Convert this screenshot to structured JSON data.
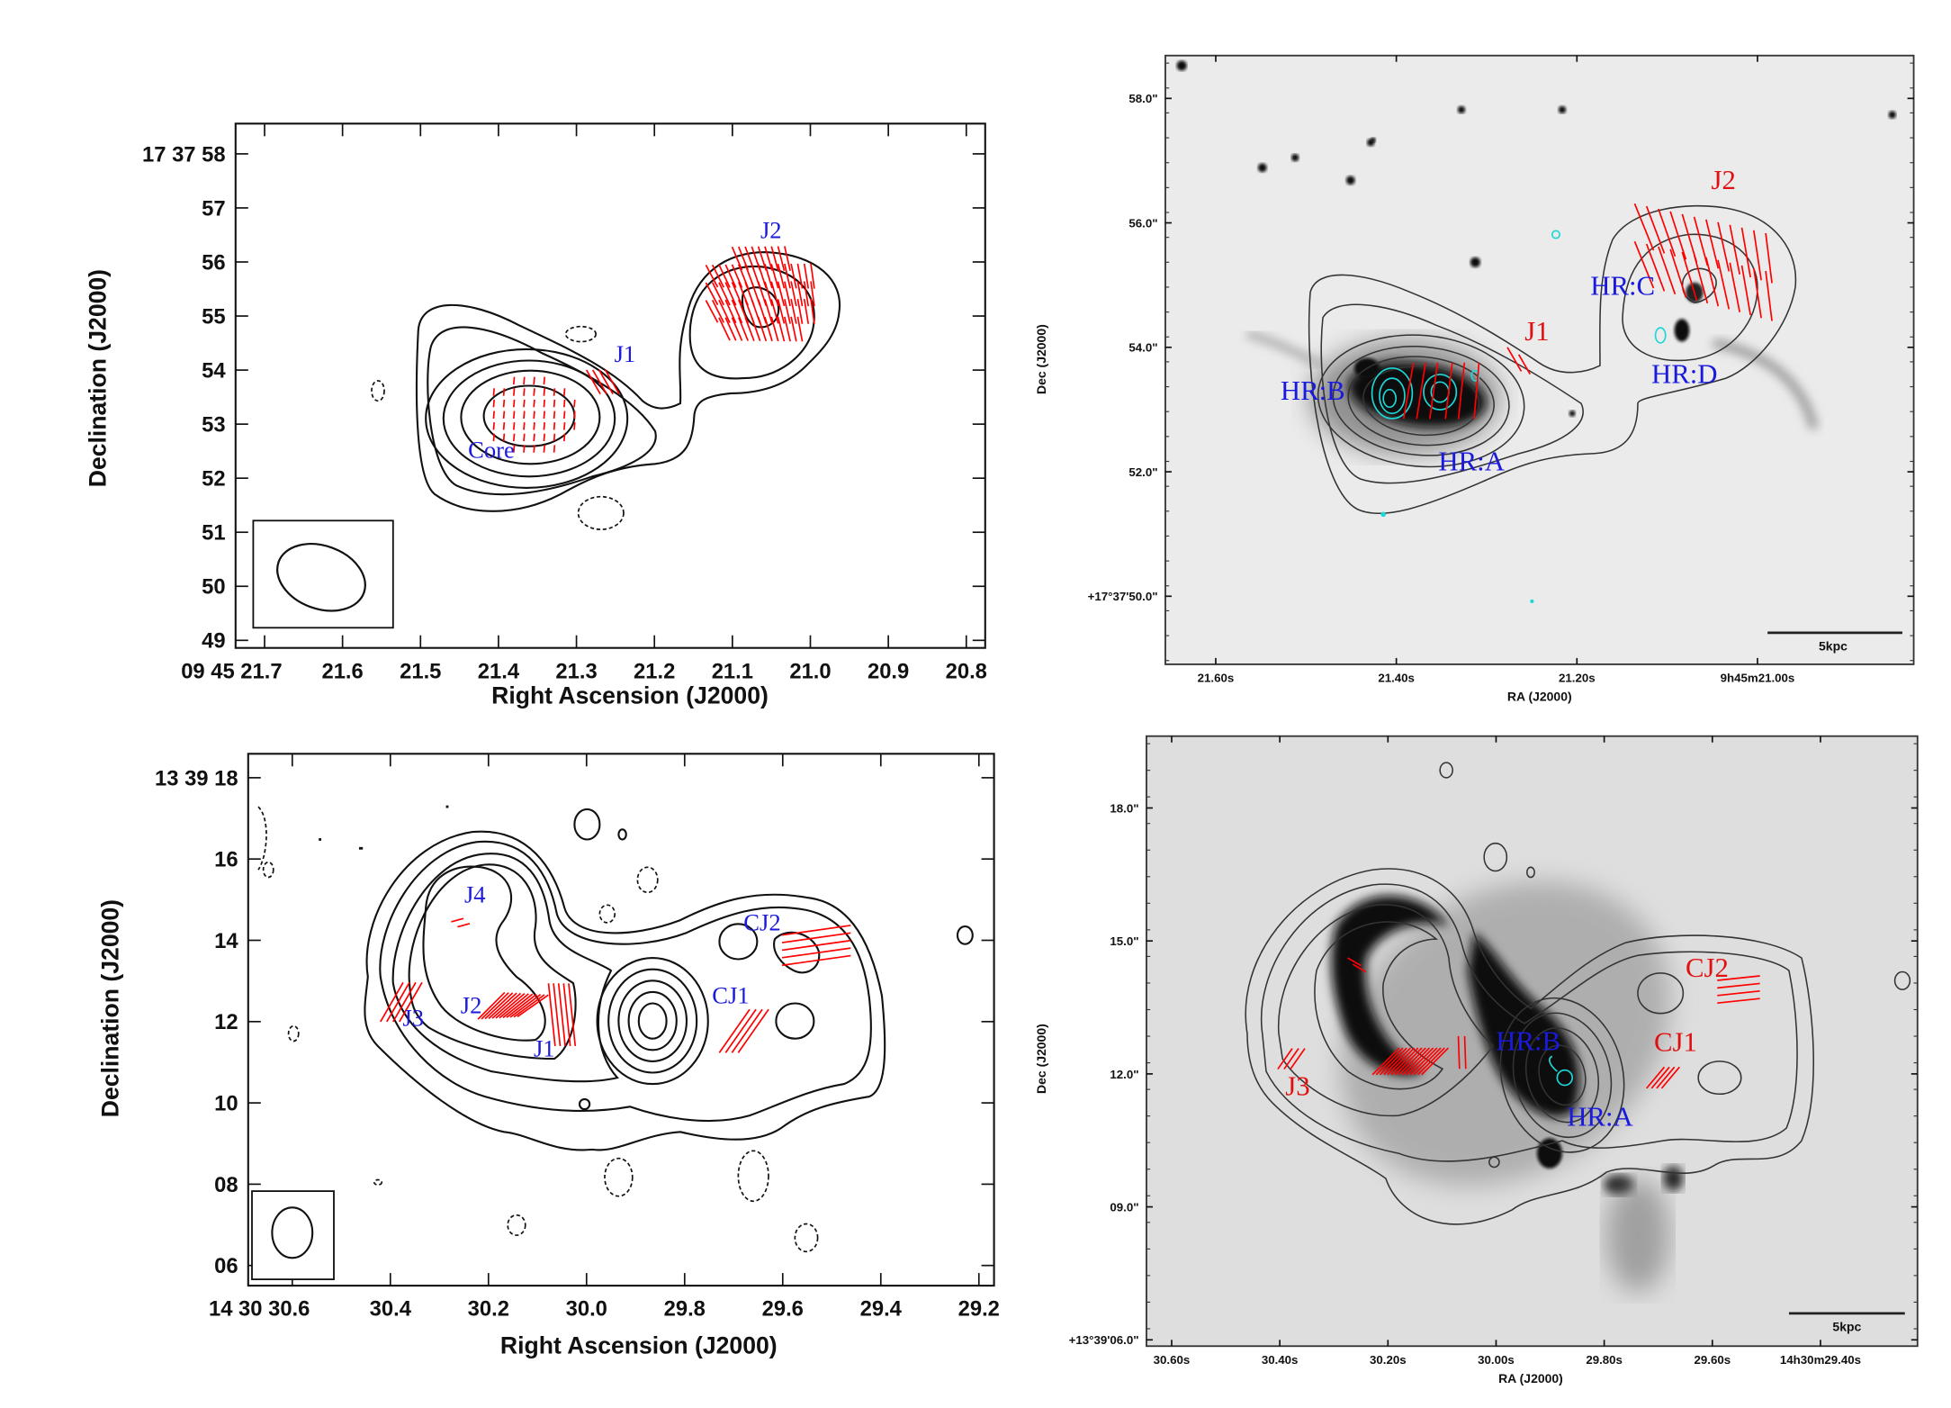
{
  "colors": {
    "vectors": "#ff0000",
    "label_blue": "#1a1adc",
    "label_red": "#e01010",
    "optical_contours": "#1fd6d6"
  },
  "panels": [
    {
      "xlabel": "Right Ascension (J2000)",
      "ylabel": "Declination (J2000)",
      "xticks": [
        "09 45 21.7",
        "21.6",
        "21.5",
        "21.4",
        "21.3",
        "21.2",
        "21.1",
        "21.0",
        "20.9",
        "20.8"
      ],
      "yticks": [
        "17 37 58",
        "57",
        "56",
        "55",
        "54",
        "53",
        "52",
        "51",
        "50",
        "49"
      ],
      "labels": {
        "j2": "J2",
        "j1": "J1",
        "core": "Core"
      }
    },
    {
      "xlabel": "RA (J2000)",
      "ylabel": "Dec (J2000)",
      "xticks": [
        "21.60s",
        "21.40s",
        "21.20s",
        "9h45m21.00s"
      ],
      "yticks": [
        "58.0\"",
        "56.0\"",
        "54.0\"",
        "52.0\"",
        "+17°37'50.0\""
      ],
      "scalebar": "5kpc",
      "labels": {
        "j2": "J2",
        "j1": "J1",
        "hrc": "HR:C",
        "hrd": "HR:D",
        "hrb": "HR:B",
        "hra": "HR:A"
      }
    },
    {
      "xlabel": "Right Ascension (J2000)",
      "ylabel": "Declination (J2000)",
      "xticks": [
        "14 30 30.6",
        "30.4",
        "30.2",
        "30.0",
        "29.8",
        "29.6",
        "29.4",
        "29.2"
      ],
      "yticks": [
        "13 39 18",
        "16",
        "14",
        "12",
        "10",
        "08",
        "06"
      ],
      "labels": {
        "j4": "J4",
        "cj2": "CJ2",
        "j3": "J3",
        "j2": "J2",
        "cj1": "CJ1",
        "j1": "J1"
      }
    },
    {
      "xlabel": "RA (J2000)",
      "ylabel": "Dec (J2000)",
      "xticks": [
        "30.60s",
        "30.40s",
        "30.20s",
        "30.00s",
        "29.80s",
        "29.60s",
        "14h30m29.40s"
      ],
      "yticks": [
        "18.0\"",
        "15.0\"",
        "12.0\"",
        "09.0\"",
        "+13°39'06.0\""
      ],
      "scalebar": "5kpc",
      "labels": {
        "j3": "J3",
        "cj2": "CJ2",
        "cj1": "CJ1",
        "hrb": "HR:B",
        "hra": "HR:A"
      }
    }
  ]
}
